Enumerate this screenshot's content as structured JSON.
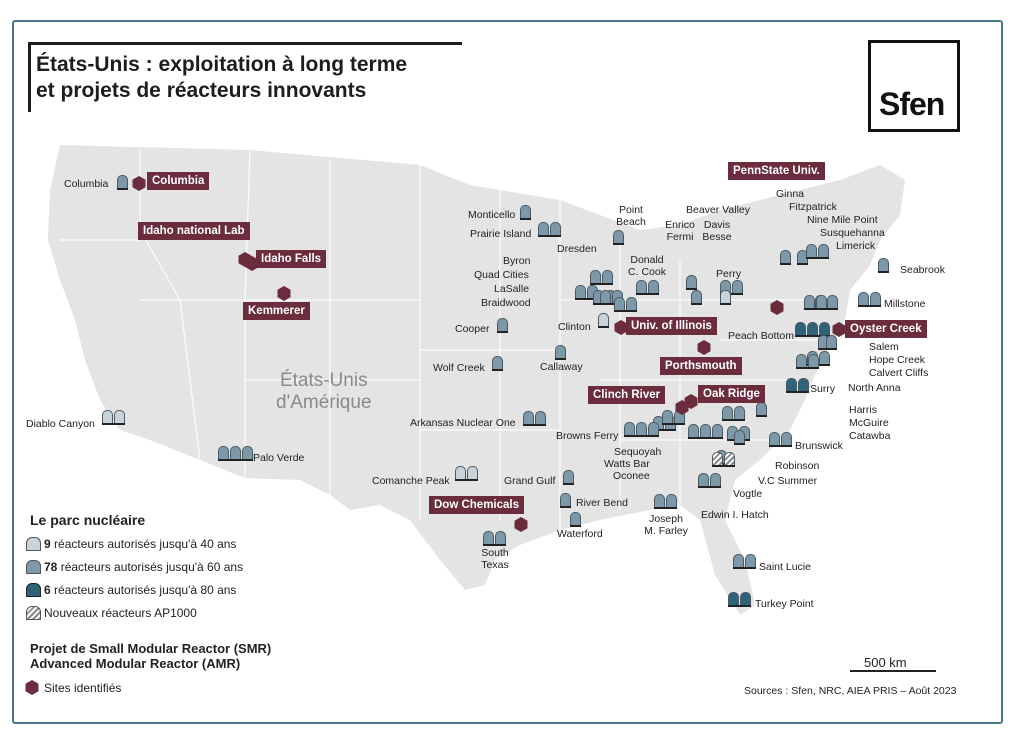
{
  "title": {
    "line1": "États-Unis : exploitation à long terme",
    "line2": "et projets de réacteurs innovants"
  },
  "logo": "Sfen",
  "country_label": {
    "line1": "États-Unis",
    "line2": "d'Amérique"
  },
  "colors": {
    "light": "#c9d3da",
    "medium": "#7d98a8",
    "dark": "#2f6478",
    "smr": "#6b2c3e",
    "land": "#e4e4e4",
    "border": "#4a7386"
  },
  "plants": [
    {
      "name": "Columbia",
      "type": "medium"
    },
    {
      "name": "Monticello",
      "type": "medium"
    },
    {
      "name": "Prairie Island",
      "type": "medium"
    },
    {
      "name": "Point Beach",
      "type": "medium"
    },
    {
      "name": "Byron",
      "type": "medium"
    },
    {
      "name": "Dresden",
      "type": "medium"
    },
    {
      "name": "Quad Cities",
      "type": "medium"
    },
    {
      "name": "LaSalle",
      "type": "medium"
    },
    {
      "name": "Braidwood",
      "type": "medium"
    },
    {
      "name": "Donald C. Cook",
      "type": "medium"
    },
    {
      "name": "Enrico Fermi",
      "type": "medium"
    },
    {
      "name": "Davis Besse",
      "type": "medium"
    },
    {
      "name": "Beaver Valley",
      "type": "medium"
    },
    {
      "name": "Perry",
      "type": "light"
    },
    {
      "name": "Ginna",
      "type": "medium"
    },
    {
      "name": "Fitzpatrick",
      "type": "medium"
    },
    {
      "name": "Nine Mile Point",
      "type": "medium"
    },
    {
      "name": "Susquehanna",
      "type": "medium"
    },
    {
      "name": "Limerick",
      "type": "medium"
    },
    {
      "name": "Seabrook",
      "type": "medium"
    },
    {
      "name": "Millstone",
      "type": "medium"
    },
    {
      "name": "Peach Bottom",
      "type": "dark"
    },
    {
      "name": "Salem",
      "type": "medium"
    },
    {
      "name": "Hope Creek",
      "type": "medium"
    },
    {
      "name": "Calvert Cliffs",
      "type": "medium"
    },
    {
      "name": "North Anna",
      "type": "medium"
    },
    {
      "name": "Surry",
      "type": "dark"
    },
    {
      "name": "Harris",
      "type": "medium"
    },
    {
      "name": "McGuire",
      "type": "medium"
    },
    {
      "name": "Catawba",
      "type": "medium"
    },
    {
      "name": "Brunswick",
      "type": "medium"
    },
    {
      "name": "Robinson",
      "type": "medium"
    },
    {
      "name": "V.C Summer",
      "type": "medium"
    },
    {
      "name": "Vogtle",
      "type": "ap1000"
    },
    {
      "name": "Edwin I. Hatch",
      "type": "medium"
    },
    {
      "name": "Oconee",
      "type": "medium"
    },
    {
      "name": "Watts Bar",
      "type": "medium"
    },
    {
      "name": "Sequoyah",
      "type": "medium"
    },
    {
      "name": "Browns Ferry",
      "type": "medium"
    },
    {
      "name": "Clinton",
      "type": "light"
    },
    {
      "name": "Cooper",
      "type": "medium"
    },
    {
      "name": "Wolf Creek",
      "type": "medium"
    },
    {
      "name": "Callaway",
      "type": "medium"
    },
    {
      "name": "Arkansas Nuclear One",
      "type": "medium"
    },
    {
      "name": "Diablo Canyon",
      "type": "light"
    },
    {
      "name": "Palo Verde",
      "type": "medium"
    },
    {
      "name": "Comanche Peak",
      "type": "light"
    },
    {
      "name": "Grand Gulf",
      "type": "medium"
    },
    {
      "name": "River Bend",
      "type": "medium"
    },
    {
      "name": "Waterford",
      "type": "medium"
    },
    {
      "name": "South Texas",
      "type": "medium"
    },
    {
      "name": "Joseph M. Farley",
      "type": "medium"
    },
    {
      "name": "Saint Lucie",
      "type": "medium"
    },
    {
      "name": "Turkey Point",
      "type": "dark"
    }
  ],
  "smr_sites": [
    "Columbia",
    "Idaho national Lab",
    "Idaho Falls",
    "Kemmerer",
    "PennState Univ.",
    "Oyster Creek",
    "Univ. of Illinois",
    "Porthsmouth",
    "Clinch River",
    "Oak Ridge",
    "Dow Chemicals"
  ],
  "legend": {
    "title": "Le parc nucléaire",
    "rows": [
      {
        "count": "9",
        "text": " réacteurs autorisés jusqu'à 40 ans"
      },
      {
        "count": "78",
        "text": " réacteurs autorisés jusqu'à 60 ans"
      },
      {
        "count": "6",
        "text": " réacteurs autorisés jusqu'à 80 ans"
      },
      {
        "count": "",
        "text": "Nouveaux réacteurs AP1000"
      }
    ],
    "smr_title1": "Projet de Small Modular Reactor (SMR)",
    "smr_title2": "Advanced Modular Reactor (AMR)",
    "smr_item": "Sites identifiés"
  },
  "scale": "500 km",
  "sources": "Sources : Sfen, NRC, AIEA PRIS – Août 2023"
}
